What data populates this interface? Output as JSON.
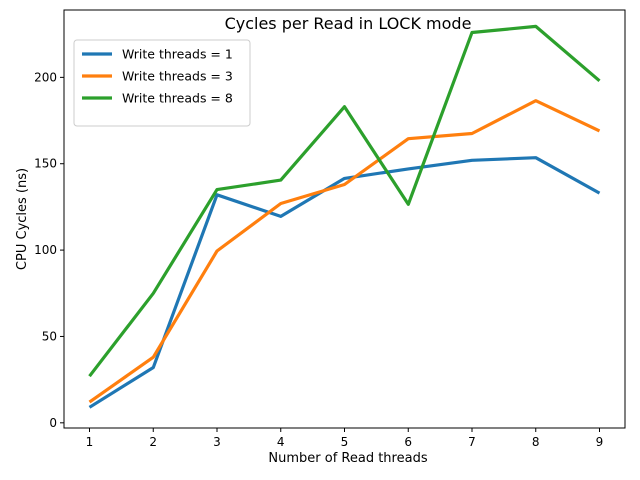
{
  "chart_data": {
    "type": "line",
    "title": "Cycles per Read in LOCK mode",
    "xlabel": "Number of Read threads",
    "ylabel": "CPU Cycles (ns)",
    "x": [
      1,
      2,
      3,
      4,
      5,
      6,
      7,
      8,
      9
    ],
    "xticks": [
      "1",
      "2",
      "3",
      "4",
      "5",
      "6",
      "7",
      "8",
      "9"
    ],
    "yticks": [
      "0",
      "50",
      "100",
      "150",
      "200"
    ],
    "xlim": [
      0.6,
      9.4
    ],
    "ylim": [
      -3,
      239
    ],
    "grid": false,
    "legend_position": "upper-left",
    "series": [
      {
        "name": "Write threads = 1",
        "color": "#1f77b4",
        "values": [
          9,
          32,
          132,
          119.5,
          141.5,
          147,
          152,
          153.5,
          133
        ]
      },
      {
        "name": "Write threads = 3",
        "color": "#ff7f0e",
        "values": [
          12,
          38,
          99.5,
          127,
          138,
          164.5,
          167.5,
          186.5,
          169
        ]
      },
      {
        "name": "Write threads = 8",
        "color": "#2ca02c",
        "values": [
          27,
          75,
          135,
          140.5,
          183,
          126.5,
          226,
          229.5,
          198
        ]
      }
    ]
  }
}
